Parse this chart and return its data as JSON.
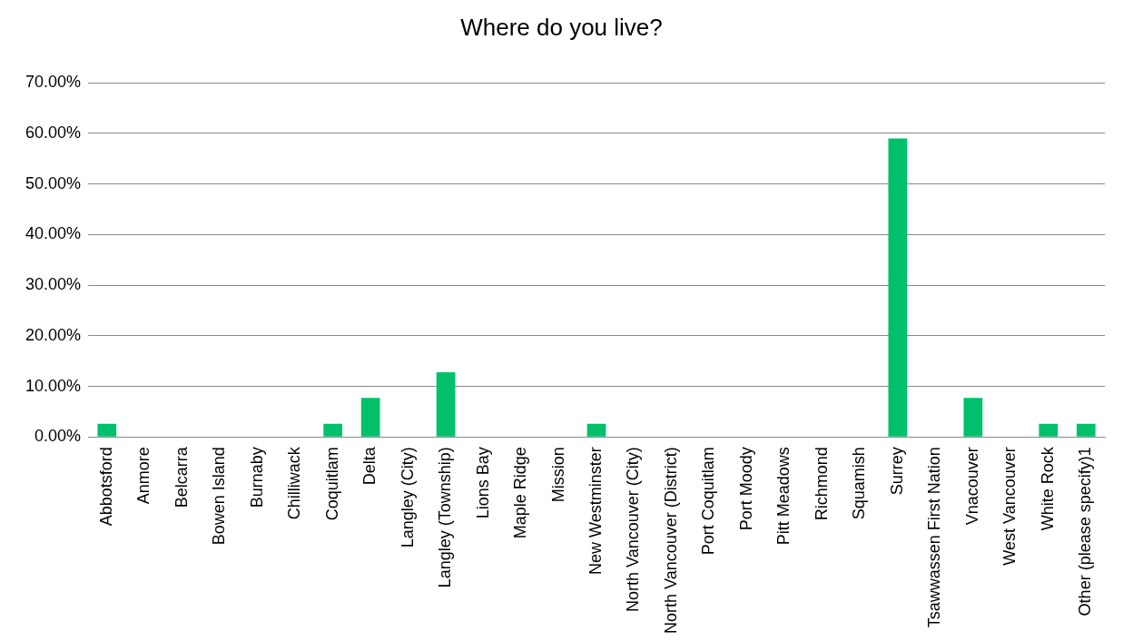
{
  "chart_data": {
    "type": "bar",
    "title": "Where do you live?",
    "categories": [
      "Abbotsford",
      "Anmore",
      "Belcarra",
      "Bowen Island",
      "Burnaby",
      "Chilliwack",
      "Coquitlam",
      "Delta",
      "Langley (City)",
      "Langley (Township)",
      "Lions Bay",
      "Maple Ridge",
      "Mission",
      "New Westminster",
      "North Vancouver (City)",
      "North Vancouver (District)",
      "Port Coquitlam",
      "Port Moody",
      "Pitt Meadows",
      "Richmond",
      "Squamish",
      "Surrey",
      "Tsawwassen First Nation",
      "Vnacouver",
      "West Vancouver",
      "White Rock",
      "Other (please specify)1"
    ],
    "values": [
      2.6,
      0,
      0,
      0,
      0,
      0,
      2.6,
      7.7,
      0,
      12.8,
      0,
      0,
      0,
      2.6,
      0,
      0,
      0,
      0,
      0,
      0,
      0,
      59.0,
      0,
      7.7,
      0,
      2.6,
      2.6
    ],
    "color": "#00c06b",
    "ylim": [
      0,
      70
    ],
    "yticks": [
      {
        "value": 0,
        "label": "0.00%"
      },
      {
        "value": 10,
        "label": "10.00%"
      },
      {
        "value": 20,
        "label": "20.00%"
      },
      {
        "value": 30,
        "label": "30.00%"
      },
      {
        "value": 40,
        "label": "40.00%"
      },
      {
        "value": 50,
        "label": "50.00%"
      },
      {
        "value": 60,
        "label": "60.00%"
      },
      {
        "value": 70,
        "label": "70.00%"
      }
    ],
    "grid": "y"
  }
}
